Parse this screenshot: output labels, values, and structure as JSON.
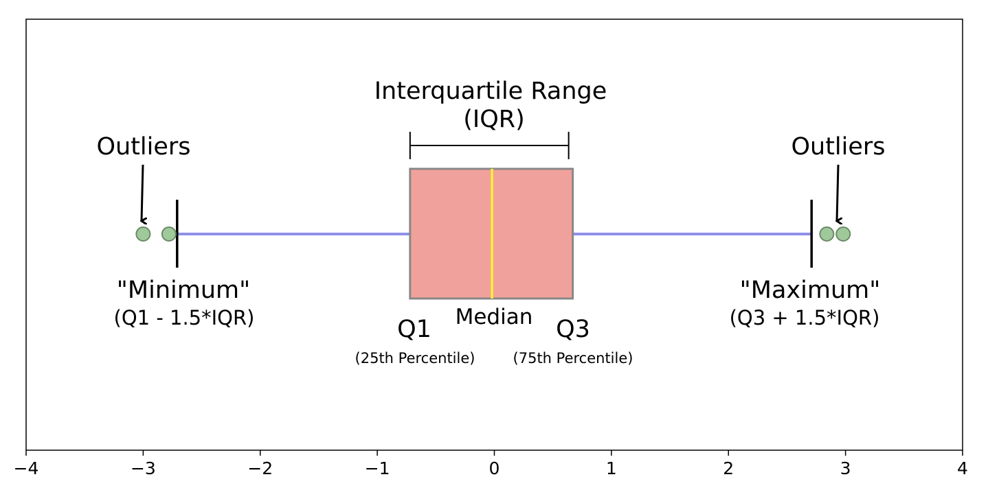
{
  "chart_data": {
    "type": "box",
    "xlim": [
      -4,
      4
    ],
    "xticks": [
      -4,
      -3,
      -2,
      -1,
      0,
      1,
      2,
      3,
      4
    ],
    "xtick_labels": [
      "−4",
      "−3",
      "−2",
      "−1",
      "0",
      "1",
      "2",
      "3",
      "4"
    ],
    "q1": -0.72,
    "median": -0.02,
    "q3": 0.67,
    "whisker_low": -2.71,
    "whisker_high": 2.71,
    "outliers": [
      -3.0,
      -2.78,
      2.84,
      2.98
    ],
    "colors": {
      "box_fill": "#f1a19b",
      "box_edge": "#888888",
      "median": "#ffee33",
      "whisker": "#8f8fe8",
      "outlier_fill": "#9fc99a",
      "outlier_edge": "#6b8a66"
    }
  },
  "annotations": {
    "iqr_title": "Interquartile Range",
    "iqr_abbr": "(IQR)",
    "outliers_left": "Outliers",
    "outliers_right": "Outliers",
    "minimum_label": "\"Minimum\"",
    "minimum_formula": "(Q1 - 1.5*IQR)",
    "maximum_label": "\"Maximum\"",
    "maximum_formula": "(Q3 + 1.5*IQR)",
    "q1_label": "Q1",
    "q1_sub": "(25th Percentile)",
    "median_label": "Median",
    "q3_label": "Q3",
    "q3_sub": "(75th Percentile)"
  }
}
